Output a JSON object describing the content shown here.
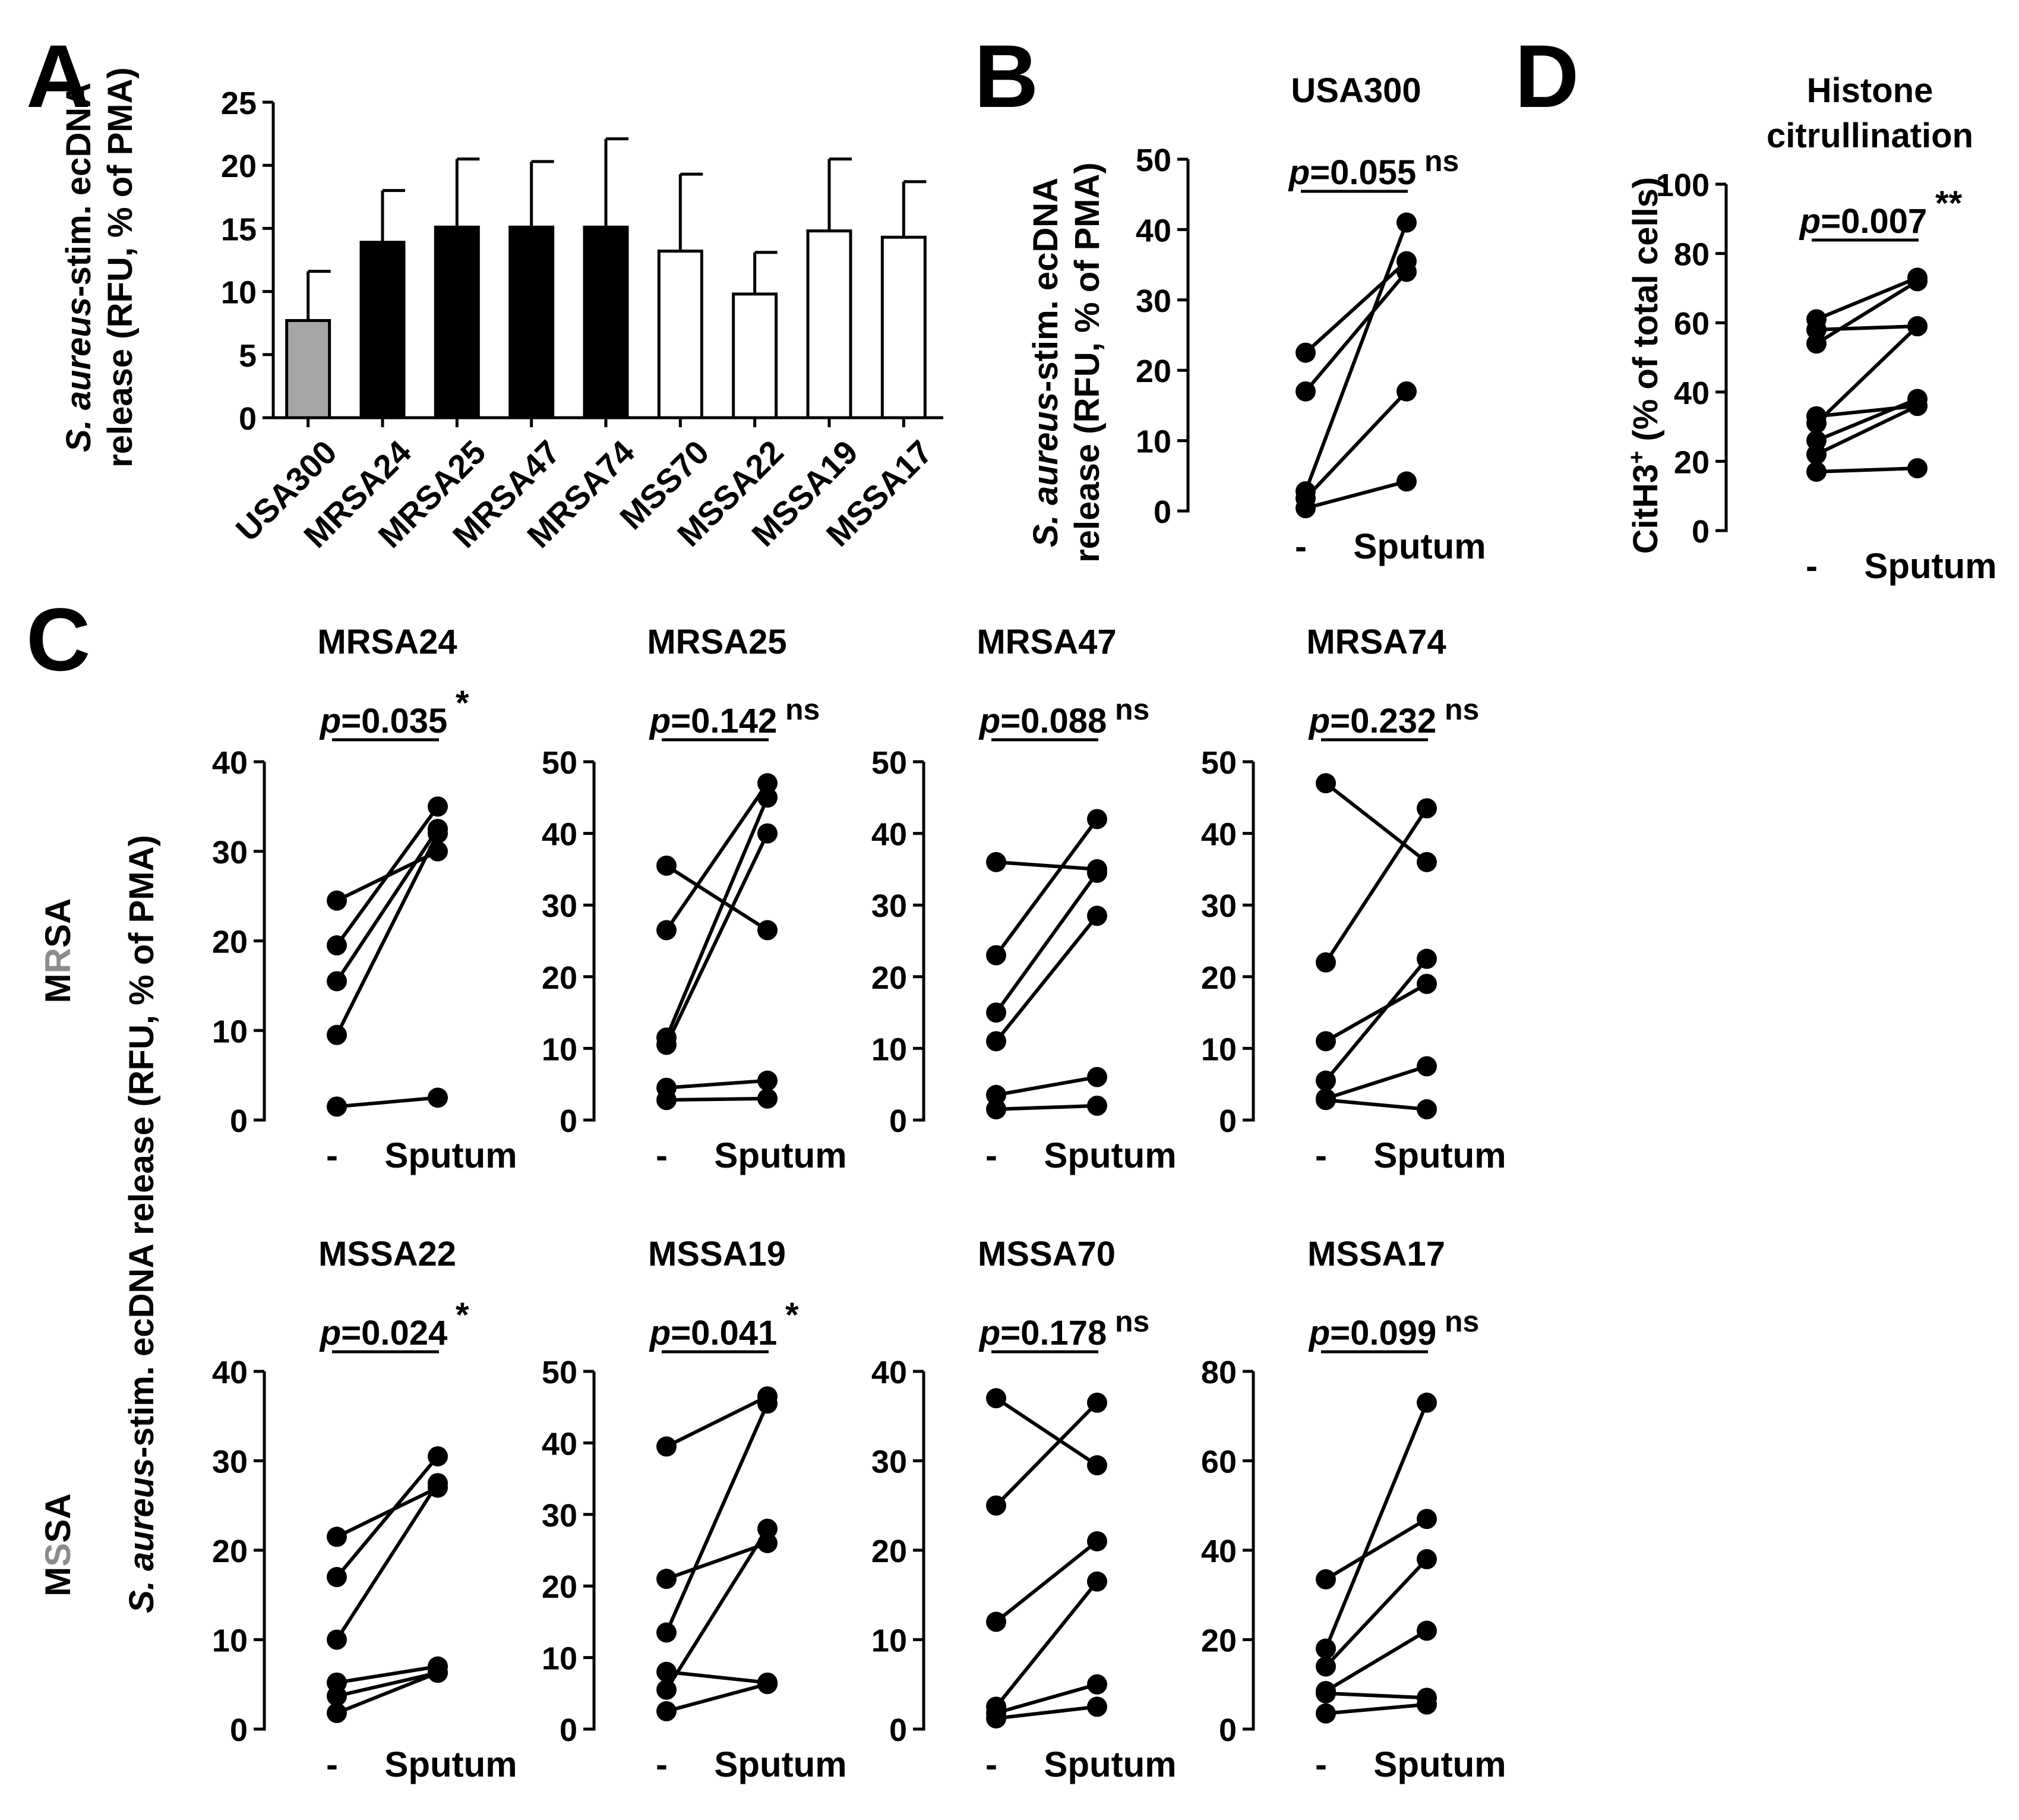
{
  "chart_data": [
    {
      "id": "A",
      "panel_letter": "A",
      "type": "bar",
      "title": "",
      "ylabel_line1_italic": "S. aureus",
      "ylabel_line1_rest": "-stim. ecDNA",
      "ylabel_line2": "release (RFU, % of PMA)",
      "ylim": [
        0,
        25
      ],
      "yticks": [
        0,
        5,
        10,
        15,
        20,
        25
      ],
      "categories": [
        "USA300",
        "MRSA24",
        "MRSA25",
        "MRSA47",
        "MRSA74",
        "MSS70",
        "MSSA22",
        "MSSA19",
        "MSSA17"
      ],
      "values": [
        7.7,
        13.9,
        15.1,
        15.1,
        15.1,
        13.2,
        9.8,
        14.8,
        14.3
      ],
      "errors": [
        3.9,
        4.1,
        5.4,
        5.2,
        7.0,
        6.1,
        3.3,
        5.7,
        4.4
      ],
      "fills": [
        "#a6a6a8",
        "#000000",
        "#000000",
        "#000000",
        "#000000",
        "#ffffff",
        "#ffffff",
        "#ffffff",
        "#ffffff"
      ]
    },
    {
      "id": "B",
      "panel_letter": "B",
      "type": "line",
      "title": "USA300",
      "ylabel_line1_italic": "S. aureus",
      "ylabel_line1_rest": "-stim. ecDNA",
      "ylabel_line2": "release (RFU, % of PMA)",
      "ylim": [
        0,
        50
      ],
      "yticks": [
        0,
        10,
        20,
        30,
        40,
        50
      ],
      "categories": [
        "-",
        "Sputum"
      ],
      "pairs": [
        [
          22.5,
          35.5
        ],
        [
          17,
          34
        ],
        [
          2.8,
          41
        ],
        [
          1.8,
          17
        ],
        [
          0.4,
          4.2
        ]
      ],
      "p_value": "0.055",
      "significance": "ns"
    },
    {
      "id": "D",
      "panel_letter": "D",
      "type": "line",
      "title_line1": "Histone",
      "title_line2": "citrullination",
      "ylabel_main": "CitH3",
      "ylabel_sup": "+",
      "ylabel_rest": " (% of total cells)",
      "ylim": [
        0,
        100
      ],
      "yticks": [
        0,
        20,
        40,
        60,
        80,
        100
      ],
      "categories": [
        "-",
        "Sputum"
      ],
      "pairs": [
        [
          61,
          73
        ],
        [
          58,
          59
        ],
        [
          54,
          72
        ],
        [
          33,
          36
        ],
        [
          31,
          59
        ],
        [
          26,
          38
        ],
        [
          22,
          36
        ],
        [
          17,
          18
        ]
      ],
      "p_value": "0.007",
      "significance": "**"
    },
    {
      "id": "C1",
      "type": "line",
      "title": "MRSA24",
      "ylim": [
        0,
        40
      ],
      "yticks": [
        0,
        10,
        20,
        30,
        40
      ],
      "categories": [
        "-",
        "Sputum"
      ],
      "pairs": [
        [
          24.5,
          30
        ],
        [
          19.5,
          35
        ],
        [
          15.5,
          32.5
        ],
        [
          9.5,
          32
        ],
        [
          1.5,
          2.5
        ]
      ],
      "p_value": "0.035",
      "significance": "*"
    },
    {
      "id": "C2",
      "type": "line",
      "title": "MRSA25",
      "ylim": [
        0,
        50
      ],
      "yticks": [
        0,
        10,
        20,
        30,
        40,
        50
      ],
      "categories": [
        "-",
        "Sputum"
      ],
      "pairs": [
        [
          35.5,
          26.5
        ],
        [
          26.5,
          47
        ],
        [
          11.5,
          45
        ],
        [
          10.5,
          40
        ],
        [
          4.5,
          5.5
        ],
        [
          2.8,
          3
        ]
      ],
      "p_value": "0.142",
      "significance": "ns"
    },
    {
      "id": "C3",
      "type": "line",
      "title": "MRSA47",
      "ylim": [
        0,
        50
      ],
      "yticks": [
        0,
        10,
        20,
        30,
        40,
        50
      ],
      "categories": [
        "-",
        "Sputum"
      ],
      "pairs": [
        [
          36,
          35
        ],
        [
          23,
          42
        ],
        [
          15,
          34.5
        ],
        [
          11,
          28.5
        ],
        [
          3.5,
          6
        ],
        [
          1.5,
          2
        ]
      ],
      "p_value": "0.088",
      "significance": "ns"
    },
    {
      "id": "C4",
      "type": "line",
      "title": "MRSA74",
      "ylim": [
        0,
        50
      ],
      "yticks": [
        0,
        10,
        20,
        30,
        40,
        50
      ],
      "categories": [
        "-",
        "Sputum"
      ],
      "pairs": [
        [
          47,
          36
        ],
        [
          22,
          43.5
        ],
        [
          11,
          19
        ],
        [
          5.5,
          22.5
        ],
        [
          3,
          7.5
        ],
        [
          2.8,
          1.5
        ]
      ],
      "p_value": "0.232",
      "significance": "ns"
    },
    {
      "id": "C5",
      "type": "line",
      "title": "MSSA22",
      "ylim": [
        0,
        40
      ],
      "yticks": [
        0,
        10,
        20,
        30,
        40
      ],
      "categories": [
        "-",
        "Sputum"
      ],
      "pairs": [
        [
          21.5,
          27
        ],
        [
          17,
          30.5
        ],
        [
          10,
          27.5
        ],
        [
          5.2,
          7
        ],
        [
          3.7,
          6.3
        ],
        [
          1.8,
          6.3
        ]
      ],
      "p_value": "0.024",
      "significance": "*"
    },
    {
      "id": "C6",
      "type": "line",
      "title": "MSSA19",
      "ylim": [
        0,
        50
      ],
      "yticks": [
        0,
        10,
        20,
        30,
        40,
        50
      ],
      "categories": [
        "-",
        "Sputum"
      ],
      "pairs": [
        [
          39.5,
          46.5
        ],
        [
          21,
          26
        ],
        [
          13.5,
          45.5
        ],
        [
          8,
          6.5
        ],
        [
          5.5,
          28
        ],
        [
          2.5,
          6.3
        ]
      ],
      "p_value": "0.041",
      "significance": "*"
    },
    {
      "id": "C7",
      "type": "line",
      "title": "MSSA70",
      "ylim": [
        0,
        40
      ],
      "yticks": [
        0,
        10,
        20,
        30,
        40
      ],
      "categories": [
        "-",
        "Sputum"
      ],
      "pairs": [
        [
          37,
          29.5
        ],
        [
          25,
          36.5
        ],
        [
          12,
          21
        ],
        [
          2.5,
          16.5
        ],
        [
          1.8,
          5
        ],
        [
          1.2,
          2.5
        ]
      ],
      "p_value": "0.178",
      "significance": "ns"
    },
    {
      "id": "C8",
      "type": "line",
      "title": "MSSA17",
      "ylim": [
        0,
        80
      ],
      "yticks": [
        0,
        20,
        40,
        60,
        80
      ],
      "categories": [
        "-",
        "Sputum"
      ],
      "pairs": [
        [
          33.5,
          47
        ],
        [
          18,
          73
        ],
        [
          14,
          38
        ],
        [
          8.5,
          22
        ],
        [
          8,
          7
        ],
        [
          3.5,
          5.5
        ]
      ],
      "p_value": "0.099",
      "significance": "ns"
    }
  ],
  "panel_c": {
    "letter": "C",
    "shared_ylabel_italic": "S. aureus",
    "shared_ylabel_rest": "-stim. ecDNA release (RFU, % of PMA)",
    "row_labels": [
      {
        "pre": "M",
        "mid": "R",
        "post": "SA"
      },
      {
        "pre": "M",
        "mid": "S",
        "post": "SA"
      }
    ],
    "row_label_mid_color": "#8c8c8c"
  },
  "style": {
    "ink": "#000000",
    "gray_bar": "#a6a6a8",
    "row_letter_gray": "#8c8c8c"
  }
}
